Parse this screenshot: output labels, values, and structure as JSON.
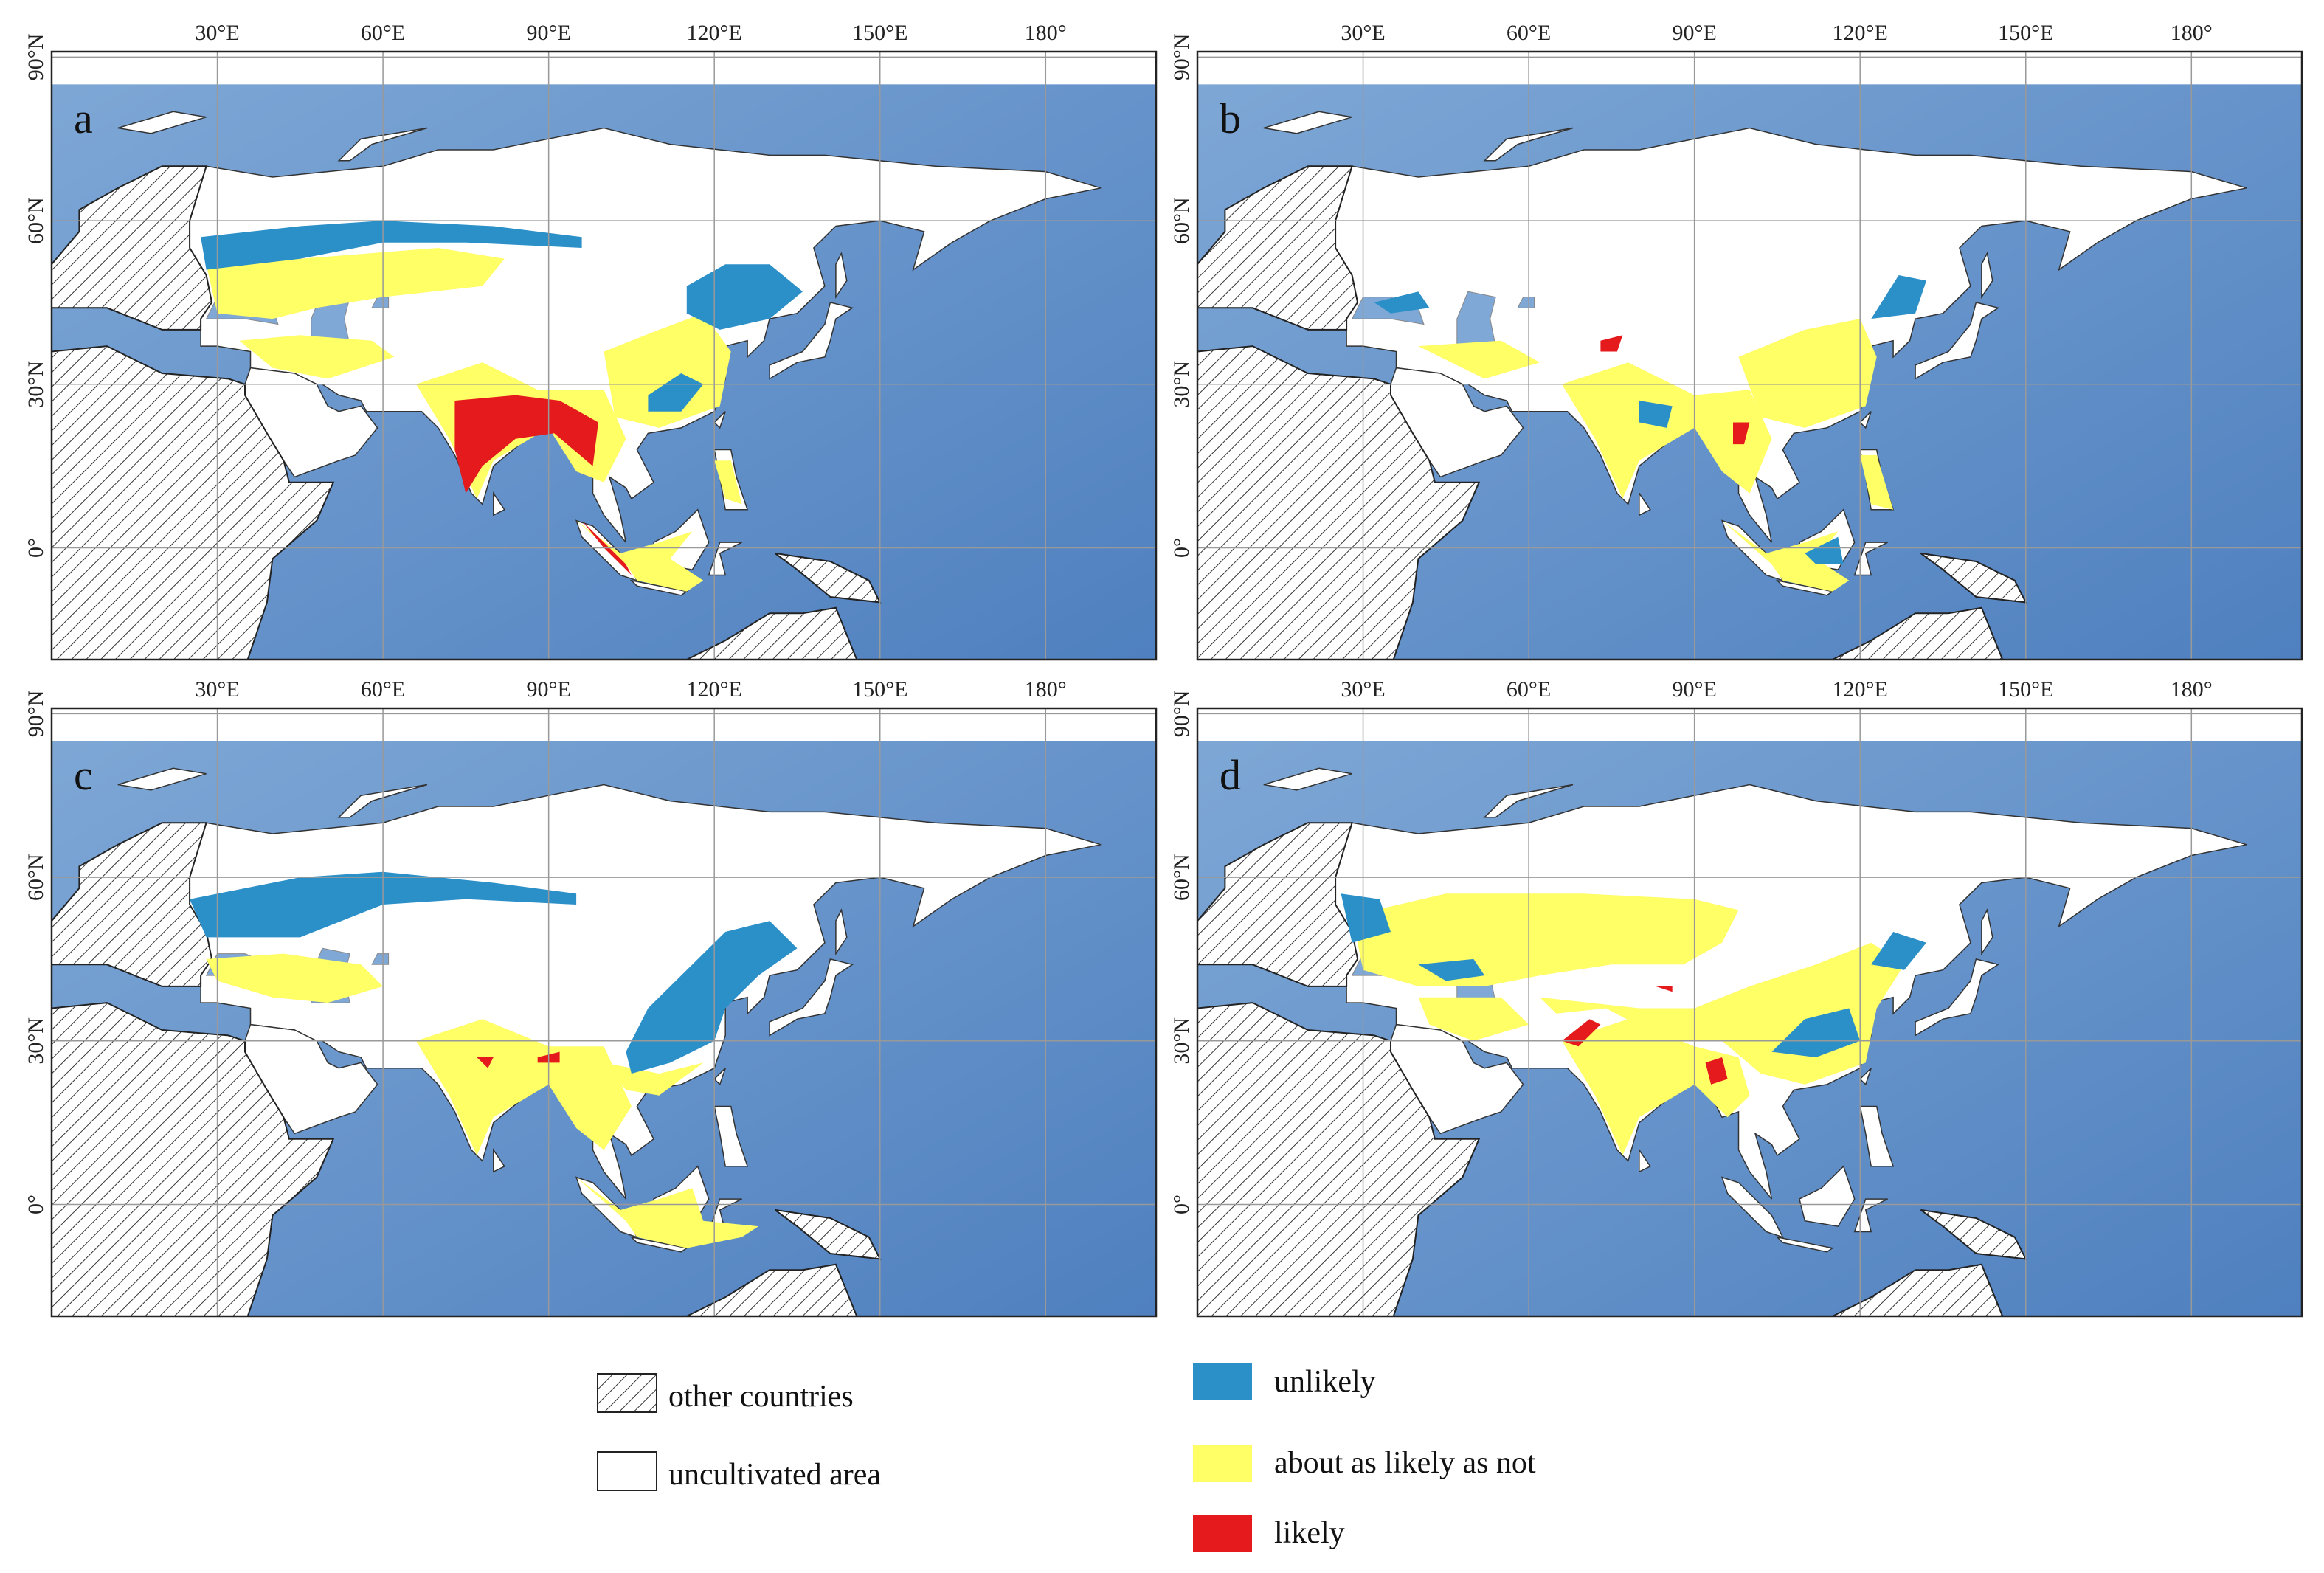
{
  "panels": [
    {
      "label": "a"
    },
    {
      "label": "b"
    },
    {
      "label": "c"
    },
    {
      "label": "d"
    }
  ],
  "lon_ticks": [
    "30°E",
    "60°E",
    "90°E",
    "120°E",
    "150°E",
    "180°"
  ],
  "lat_ticks": [
    "90°N",
    "60°N",
    "30°N",
    "0°"
  ],
  "legend": {
    "left": [
      {
        "label": "other countries"
      },
      {
        "label": "uncultivated area"
      }
    ],
    "right": [
      {
        "label": "unlikely",
        "color": "#2b8fc8"
      },
      {
        "label": "about as likely as not",
        "color": "#ffff66"
      },
      {
        "label": "likely",
        "color": "#e41a1c"
      }
    ]
  }
}
